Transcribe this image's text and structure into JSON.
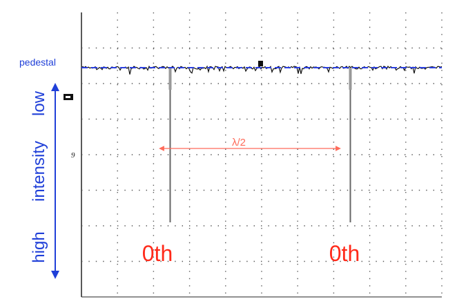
{
  "chart_data": {
    "type": "line",
    "title": "",
    "xlabel": "",
    "ylabel": "",
    "grid": true,
    "pedestal_label": "pedestal",
    "intensity_axis": {
      "low_label": "low",
      "middle_label": "intensity",
      "high_label": "high"
    },
    "spacing_label": "λ/2",
    "peaks": [
      {
        "label": "0th",
        "position": 0.25
      },
      {
        "label": "0th",
        "position": 0.75
      }
    ],
    "colors": {
      "trace": "#111111",
      "pedestal_line": "#2a3fe0",
      "axis_annotation": "#1f3fd8",
      "peak_label": "#ff2a1a",
      "spacing_arrow": "#ff6b5a",
      "grid": "#555555"
    }
  }
}
